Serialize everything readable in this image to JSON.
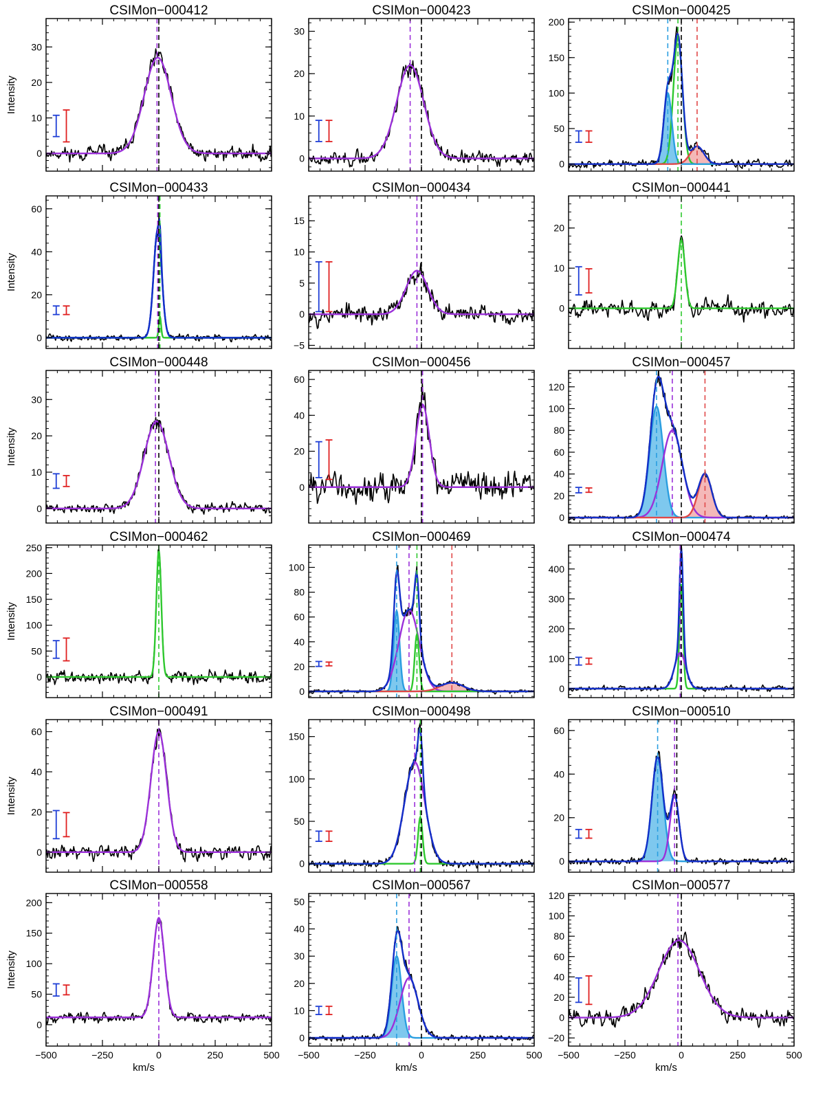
{
  "figure": {
    "xlabel": "km/s",
    "ylabel": "Intensity",
    "xlim": [
      -500,
      500
    ],
    "x_ticks": [
      -500,
      -250,
      0,
      250,
      500
    ],
    "x_tick_labels": [
      "−500",
      "−250",
      "0",
      "250",
      "500"
    ],
    "colors": {
      "data": "#000000",
      "total_fit": "#1230c8",
      "narrow": "#2ec82e",
      "broad": "#9b30d9",
      "blue_comp": "#2a9ee0",
      "blue_fill": "#7ec8ee",
      "red_comp": "#e04848",
      "red_fill": "#f4b8b8",
      "systemic": "#000000",
      "errbar_blue": "#1f3fd6",
      "errbar_red": "#e02020"
    }
  },
  "chart_data": [
    {
      "type": "line",
      "title": "CSIMon−000412",
      "ylim": [
        -5,
        38
      ],
      "yticks": [
        0,
        10,
        20,
        30
      ],
      "ytick_labels": [
        "0",
        "10",
        "20",
        "30"
      ],
      "ylabel": "Intensity",
      "noise": 2.2,
      "baseline": 0,
      "components": [
        {
          "role": "broad",
          "amp": 27,
          "center": -5,
          "sigma": 60
        }
      ],
      "vlines": [
        {
          "x": -8,
          "role": "broad"
        },
        {
          "x": 0,
          "role": "systemic"
        }
      ],
      "errbars": {
        "blue": 3,
        "red": 4.5
      },
      "seed": 11
    },
    {
      "type": "line",
      "title": "CSIMon−000423",
      "ylim": [
        -3,
        33
      ],
      "yticks": [
        0,
        10,
        20,
        30
      ],
      "ytick_labels": [
        "0",
        "10",
        "20",
        "30"
      ],
      "ylabel": "",
      "noise": 1.8,
      "baseline": 0,
      "components": [
        {
          "role": "broad",
          "amp": 22,
          "center": -50,
          "sigma": 60
        }
      ],
      "vlines": [
        {
          "x": -50,
          "role": "broad"
        },
        {
          "x": 0,
          "role": "systemic"
        }
      ],
      "errbars": {
        "blue": 2.5,
        "red": 2.5
      },
      "seed": 23
    },
    {
      "type": "line",
      "title": "CSIMon−000425",
      "ylim": [
        -10,
        205
      ],
      "yticks": [
        0,
        50,
        100,
        150,
        200
      ],
      "ytick_labels": [
        "0",
        "50",
        "100",
        "150",
        "200"
      ],
      "ylabel": "",
      "noise": 6,
      "baseline": 0,
      "components": [
        {
          "role": "narrow",
          "amp": 178,
          "center": -15,
          "sigma": 20
        },
        {
          "role": "blue",
          "amp": 100,
          "center": -60,
          "sigma": 18
        },
        {
          "role": "red",
          "amp": 25,
          "center": 70,
          "sigma": 30
        }
      ],
      "vlines": [
        {
          "x": -60,
          "role": "blue"
        },
        {
          "x": -15,
          "role": "narrow"
        },
        {
          "x": 0,
          "role": "systemic"
        },
        {
          "x": 70,
          "role": "red"
        }
      ],
      "errbars": {
        "blue": 8,
        "red": 8
      },
      "seed": 37
    },
    {
      "type": "line",
      "title": "CSIMon−000433",
      "ylim": [
        -5,
        66
      ],
      "yticks": [
        0,
        20,
        40,
        60
      ],
      "ytick_labels": [
        "0",
        "20",
        "40",
        "60"
      ],
      "ylabel": "Intensity",
      "noise": 1.6,
      "baseline": 0,
      "components": [
        {
          "role": "blue_total",
          "amp": 50,
          "center": -5,
          "sigma": 18
        },
        {
          "role": "narrow",
          "amp": 10,
          "center": 5,
          "sigma": 5
        }
      ],
      "vlines": [
        {
          "x": -5,
          "role": "broad"
        },
        {
          "x": 0,
          "role": "systemic"
        },
        {
          "x": 5,
          "role": "narrow"
        }
      ],
      "errbars": {
        "blue": 2,
        "red": 2
      },
      "seed": 41
    },
    {
      "type": "line",
      "title": "CSIMon−000434",
      "ylim": [
        -5.5,
        19
      ],
      "yticks": [
        -5,
        0,
        5,
        10,
        15
      ],
      "ytick_labels": [
        "−5",
        "0",
        "5",
        "10",
        "15"
      ],
      "ylabel": "",
      "noise": 1.8,
      "baseline": 0,
      "components": [
        {
          "role": "broad",
          "amp": 7,
          "center": -20,
          "sigma": 48
        }
      ],
      "vlines": [
        {
          "x": -20,
          "role": "broad"
        },
        {
          "x": 0,
          "role": "systemic"
        }
      ],
      "errbars": {
        "blue": 4,
        "red": 4
      },
      "seed": 53
    },
    {
      "type": "line",
      "title": "CSIMon−000441",
      "ylim": [
        -10,
        28
      ],
      "yticks": [
        0,
        10,
        20
      ],
      "ytick_labels": [
        "0",
        "10",
        "20"
      ],
      "ylabel": "",
      "noise": 2.4,
      "baseline": 0,
      "components": [
        {
          "role": "narrow",
          "amp": 17,
          "center": 0,
          "sigma": 16
        }
      ],
      "vlines": [
        {
          "x": 0,
          "role": "narrow"
        }
      ],
      "errbars": {
        "blue": 3.5,
        "red": 3
      },
      "seed": 67
    },
    {
      "type": "line",
      "title": "CSIMon−000448",
      "ylim": [
        -4,
        38
      ],
      "yticks": [
        0,
        10,
        20,
        30
      ],
      "ytick_labels": [
        "0",
        "10",
        "20",
        "30"
      ],
      "ylabel": "Intensity",
      "noise": 1.5,
      "baseline": 0,
      "components": [
        {
          "role": "broad",
          "amp": 24,
          "center": -10,
          "sigma": 55
        }
      ],
      "vlines": [
        {
          "x": -15,
          "role": "broad"
        },
        {
          "x": 0,
          "role": "systemic"
        }
      ],
      "errbars": {
        "blue": 2,
        "red": 1.5
      },
      "seed": 71
    },
    {
      "type": "line",
      "title": "CSIMon−000456",
      "ylim": [
        -20,
        65
      ],
      "yticks": [
        0,
        20,
        40,
        60
      ],
      "ytick_labels": [
        "0",
        "20",
        "40",
        "60"
      ],
      "ylabel": "",
      "noise": 9,
      "baseline": 0,
      "components": [
        {
          "role": "broad",
          "amp": 46,
          "center": 5,
          "sigma": 30
        }
      ],
      "vlines": [
        {
          "x": 0,
          "role": "systemic"
        },
        {
          "x": 5,
          "role": "broad"
        }
      ],
      "errbars": {
        "blue": 10,
        "red": 11
      },
      "seed": 83
    },
    {
      "type": "line",
      "title": "CSIMon−000457",
      "ylim": [
        -5,
        135
      ],
      "yticks": [
        0,
        20,
        40,
        60,
        80,
        100,
        120
      ],
      "ytick_labels": [
        "0",
        "20",
        "40",
        "60",
        "80",
        "100",
        "120"
      ],
      "ylabel": "",
      "noise": 1.8,
      "baseline": 0,
      "components": [
        {
          "role": "blue",
          "amp": 102,
          "center": -110,
          "sigma": 30
        },
        {
          "role": "broad",
          "amp": 80,
          "center": -40,
          "sigma": 45
        },
        {
          "role": "red",
          "amp": 40,
          "center": 105,
          "sigma": 30
        }
      ],
      "vlines": [
        {
          "x": -110,
          "role": "blue"
        },
        {
          "x": -40,
          "role": "broad"
        },
        {
          "x": 0,
          "role": "systemic"
        },
        {
          "x": 105,
          "role": "red"
        }
      ],
      "errbars": {
        "blue": 2.5,
        "red": 2
      },
      "seed": 97
    },
    {
      "type": "line",
      "title": "CSIMon−000462",
      "ylim": [
        -40,
        255
      ],
      "yticks": [
        0,
        50,
        100,
        150,
        200,
        250
      ],
      "ytick_labels": [
        "0",
        "50",
        "100",
        "150",
        "200",
        "250"
      ],
      "ylabel": "Intensity",
      "noise": 14,
      "baseline": 0,
      "components": [
        {
          "role": "narrow",
          "amp": 245,
          "center": 0,
          "sigma": 11
        }
      ],
      "vlines": [
        {
          "x": 0,
          "role": "narrow"
        }
      ],
      "errbars": {
        "blue": 17,
        "red": 22
      },
      "seed": 101
    },
    {
      "type": "line",
      "title": "CSIMon−000469",
      "ylim": [
        -5,
        118
      ],
      "yticks": [
        0,
        20,
        40,
        60,
        80,
        100
      ],
      "ytick_labels": [
        "0",
        "20",
        "40",
        "60",
        "80",
        "100"
      ],
      "ylabel": "",
      "noise": 1.8,
      "baseline": 0,
      "components": [
        {
          "role": "blue",
          "amp": 65,
          "center": -110,
          "sigma": 13
        },
        {
          "role": "broad",
          "amp": 66,
          "center": -55,
          "sigma": 45
        },
        {
          "role": "narrow",
          "amp": 46,
          "center": -20,
          "sigma": 10
        },
        {
          "role": "red",
          "amp": 7,
          "center": 135,
          "sigma": 50
        }
      ],
      "vlines": [
        {
          "x": -110,
          "role": "blue"
        },
        {
          "x": -55,
          "role": "broad"
        },
        {
          "x": -20,
          "role": "narrow"
        },
        {
          "x": 0,
          "role": "systemic"
        },
        {
          "x": 135,
          "role": "red"
        }
      ],
      "errbars": {
        "blue": 2,
        "red": 1.5
      },
      "seed": 113
    },
    {
      "type": "line",
      "title": "CSIMon−000474",
      "ylim": [
        -30,
        480
      ],
      "yticks": [
        0,
        100,
        200,
        300,
        400
      ],
      "ytick_labels": [
        "0",
        "100",
        "200",
        "300",
        "400"
      ],
      "ylabel": "",
      "noise": 10,
      "baseline": 0,
      "components": [
        {
          "role": "narrow",
          "amp": 350,
          "center": 0,
          "sigma": 8
        },
        {
          "role": "broad",
          "amp": 120,
          "center": -5,
          "sigma": 25
        }
      ],
      "vlines": [
        {
          "x": -5,
          "role": "broad"
        },
        {
          "x": 0,
          "role": "systemic"
        }
      ],
      "errbars": {
        "blue": 13,
        "red": 10
      },
      "seed": 127
    },
    {
      "type": "line",
      "title": "CSIMon−000491",
      "ylim": [
        -10,
        66
      ],
      "yticks": [
        0,
        20,
        40,
        60
      ],
      "ytick_labels": [
        "0",
        "20",
        "40",
        "60"
      ],
      "ylabel": "Intensity",
      "noise": 4,
      "baseline": 0,
      "components": [
        {
          "role": "broad",
          "amp": 60,
          "center": 0,
          "sigma": 35
        }
      ],
      "vlines": [
        {
          "x": 0,
          "role": "broad"
        }
      ],
      "errbars": {
        "blue": 7,
        "red": 6
      },
      "seed": 131
    },
    {
      "type": "line",
      "title": "CSIMon−000498",
      "ylim": [
        -10,
        170
      ],
      "yticks": [
        0,
        50,
        100,
        150
      ],
      "ytick_labels": [
        "0",
        "50",
        "100",
        "150"
      ],
      "ylabel": "",
      "noise": 5,
      "baseline": 0,
      "components": [
        {
          "role": "broad",
          "amp": 120,
          "center": -30,
          "sigma": 45
        },
        {
          "role": "narrow",
          "amp": 55,
          "center": -5,
          "sigma": 10
        }
      ],
      "vlines": [
        {
          "x": -30,
          "role": "broad"
        },
        {
          "x": -5,
          "role": "narrow"
        },
        {
          "x": 0,
          "role": "systemic"
        }
      ],
      "errbars": {
        "blue": 6,
        "red": 6
      },
      "seed": 139
    },
    {
      "type": "line",
      "title": "CSIMon−000510",
      "ylim": [
        -5,
        65
      ],
      "yticks": [
        0,
        20,
        40,
        60
      ],
      "ytick_labels": [
        "0",
        "20",
        "40",
        "60"
      ],
      "ylabel": "",
      "noise": 1.8,
      "baseline": 0,
      "components": [
        {
          "role": "blue",
          "amp": 48,
          "center": -105,
          "sigma": 25
        },
        {
          "role": "broad",
          "amp": 30,
          "center": -30,
          "sigma": 20
        }
      ],
      "vlines": [
        {
          "x": -105,
          "role": "blue"
        },
        {
          "x": -30,
          "role": "broad"
        },
        {
          "x": -20,
          "role": "systemic"
        }
      ],
      "errbars": {
        "blue": 2,
        "red": 2
      },
      "seed": 149
    },
    {
      "type": "line",
      "title": "CSIMon−000558",
      "ylim": [
        -35,
        215
      ],
      "yticks": [
        0,
        50,
        100,
        150,
        200
      ],
      "ytick_labels": [
        "0",
        "50",
        "100",
        "150",
        "200"
      ],
      "ylabel": "Intensity",
      "noise": 9,
      "baseline": 12,
      "components": [
        {
          "role": "broad",
          "amp": 163,
          "center": 0,
          "sigma": 25
        }
      ],
      "vlines": [
        {
          "x": 0,
          "role": "broad"
        }
      ],
      "errbars": {
        "blue": 10,
        "red": 8
      },
      "seed": 157
    },
    {
      "type": "line",
      "title": "CSIMon−000567",
      "ylim": [
        -3,
        53
      ],
      "yticks": [
        0,
        10,
        20,
        30,
        40,
        50
      ],
      "ytick_labels": [
        "0",
        "10",
        "20",
        "30",
        "40",
        "50"
      ],
      "ylabel": "",
      "noise": 1.2,
      "baseline": 0,
      "components": [
        {
          "role": "blue",
          "amp": 30,
          "center": -110,
          "sigma": 22
        },
        {
          "role": "broad",
          "amp": 22,
          "center": -55,
          "sigma": 40
        }
      ],
      "vlines": [
        {
          "x": -110,
          "role": "blue"
        },
        {
          "x": -55,
          "role": "broad"
        },
        {
          "x": 0,
          "role": "systemic"
        }
      ],
      "errbars": {
        "blue": 1.5,
        "red": 1.5
      },
      "seed": 163
    },
    {
      "type": "line",
      "title": "CSIMon−000577",
      "ylim": [
        -28,
        122
      ],
      "yticks": [
        -20,
        0,
        20,
        40,
        60,
        80,
        100,
        120
      ],
      "ytick_labels": [
        "−20",
        "0",
        "20",
        "40",
        "60",
        "80",
        "100",
        "120"
      ],
      "ylabel": "",
      "noise": 9,
      "baseline": 0,
      "components": [
        {
          "role": "broad",
          "amp": 76,
          "center": -10,
          "sigma": 90
        }
      ],
      "vlines": [
        {
          "x": -15,
          "role": "broad"
        },
        {
          "x": 0,
          "role": "systemic"
        }
      ],
      "errbars": {
        "blue": 12,
        "red": 14
      },
      "seed": 173
    }
  ]
}
